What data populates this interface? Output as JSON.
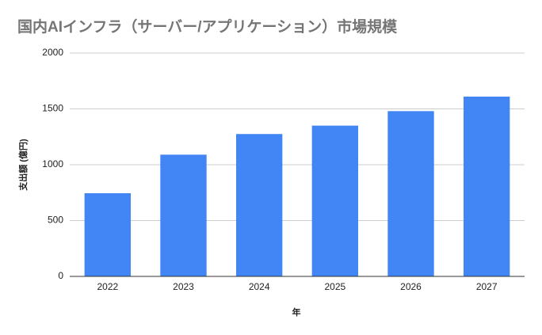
{
  "chart_data": {
    "type": "bar",
    "title": "国内AIインフラ（サーバー/アプリケーション）市場規模",
    "x_label": "年",
    "y_label": "支出額 (億円)",
    "categories": [
      "2022",
      "2023",
      "2024",
      "2025",
      "2026",
      "2027"
    ],
    "values": [
      745,
      1090,
      1275,
      1350,
      1480,
      1610
    ],
    "color": "#4285f4",
    "ylim": [
      0,
      2000
    ],
    "yticks": [
      0,
      500,
      1000,
      1500,
      2000
    ],
    "grid": true
  }
}
